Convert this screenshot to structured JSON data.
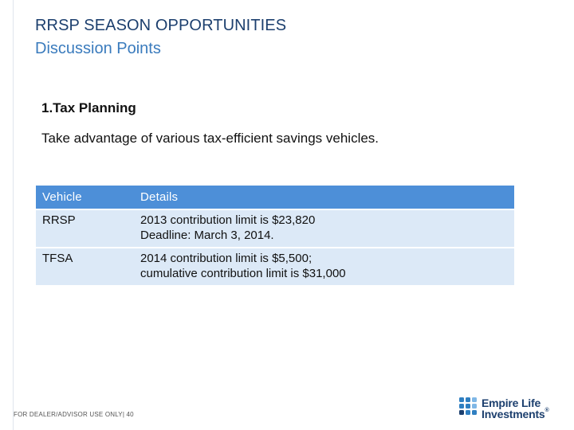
{
  "header": {
    "title": "RRSP SEASON OPPORTUNITIES",
    "subtitle": "Discussion Points"
  },
  "section": {
    "heading": "1.Tax Planning",
    "lead": "Take advantage of various tax-efficient savings vehicles."
  },
  "table": {
    "headers": [
      "Vehicle",
      "Details"
    ],
    "rows": [
      {
        "vehicle": "RRSP",
        "details": [
          "2013 contribution limit is $23,820",
          "Deadline: March 3, 2014."
        ]
      },
      {
        "vehicle": "TFSA",
        "details": [
          "2014 contribution limit is $5,500;",
          "cumulative contribution limit is $31,000"
        ]
      }
    ]
  },
  "footer": {
    "text": "FOR DEALER/ADVISOR USE ONLY| 40"
  },
  "logo": {
    "line1": "Empire Life",
    "line2": "Investments",
    "trademark": "®",
    "colors": {
      "navy": "#1c3f6e",
      "blue": "#2f7fc1",
      "light_blue": "#7fb7e6"
    }
  },
  "colors": {
    "title": "#1c3f6e",
    "subtitle": "#3a7bbd",
    "table_header": "#4d8fd8",
    "table_row": "#dce9f7"
  }
}
